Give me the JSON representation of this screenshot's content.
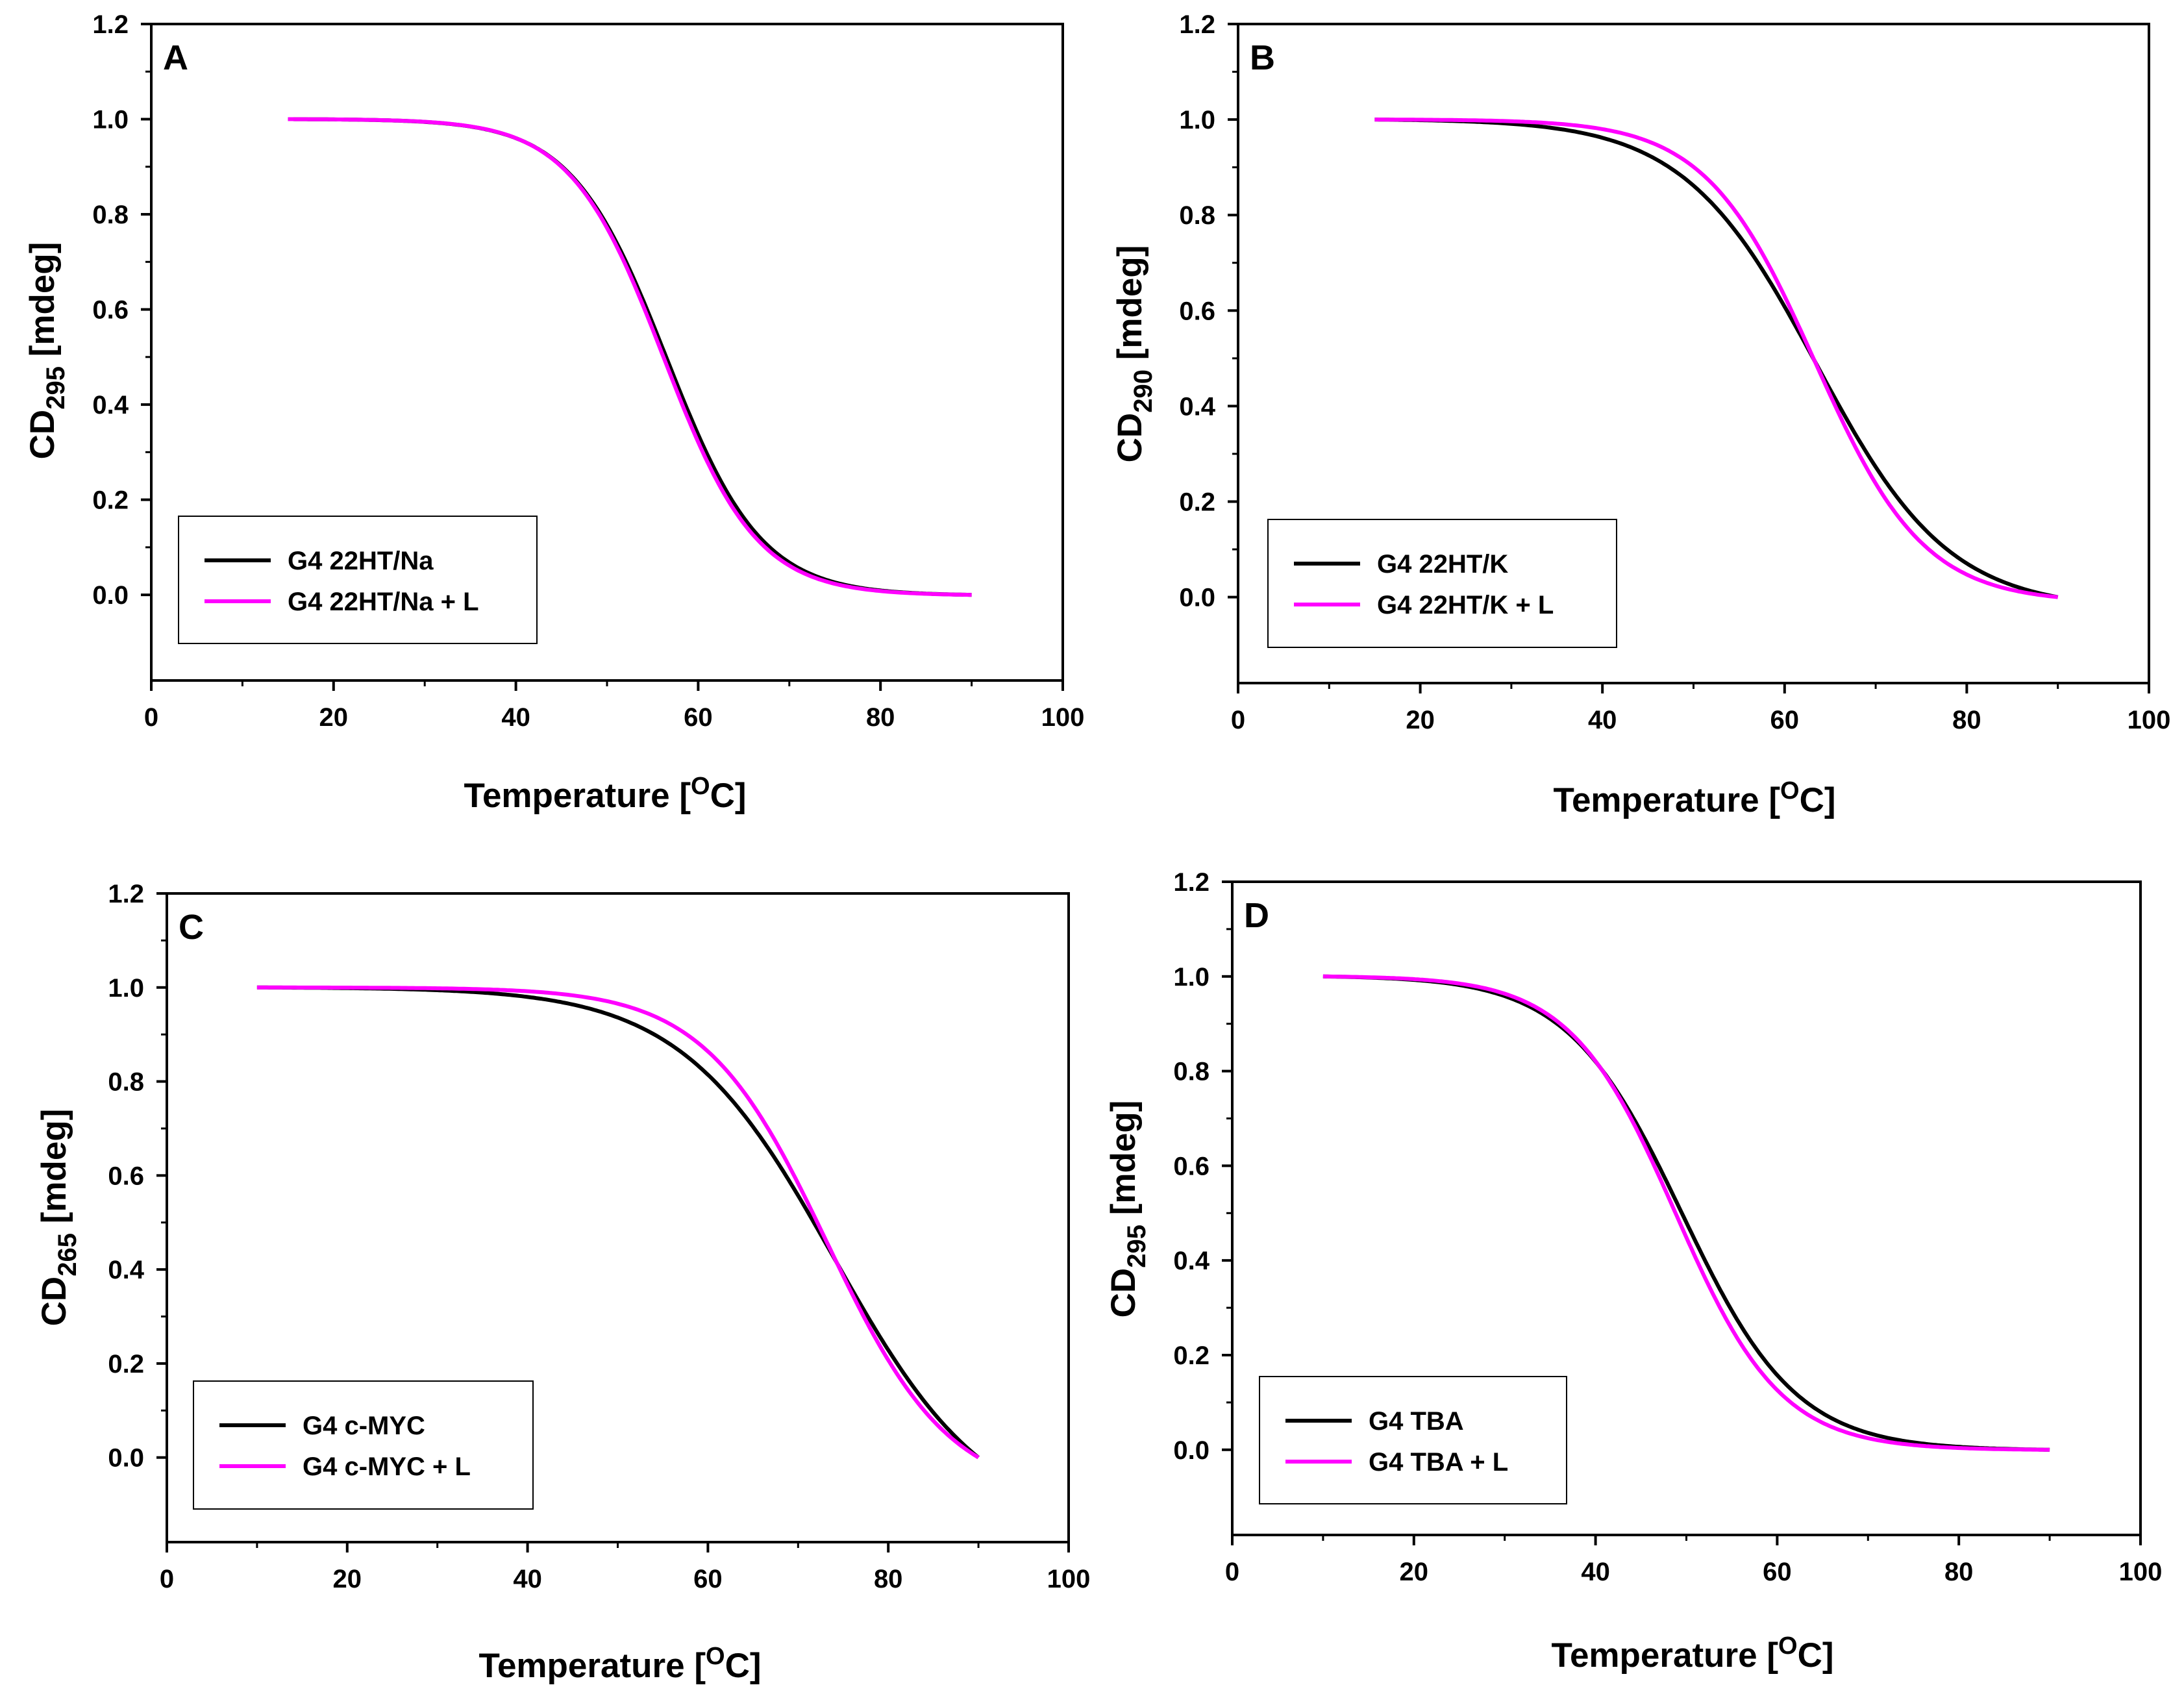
{
  "figure": {
    "description_visible": false
  },
  "chart_data": [
    {
      "type": "line",
      "panel": "A",
      "xlabel_main": "Temperature [",
      "xlabel_sup": "O",
      "xlabel_end": "C]",
      "ylabel_main": "CD",
      "ylabel_sub": "295",
      "ylabel_end": " [mdeg]",
      "xlim": [
        0,
        100
      ],
      "ylim": [
        -0.18,
        1.2
      ],
      "xticks": [
        "0",
        "20",
        "40",
        "60",
        "80",
        "100"
      ],
      "yticks": [
        "0.0",
        "0.2",
        "0.4",
        "0.6",
        "0.8",
        "1.0",
        "1.2"
      ],
      "legend": "bottom-left",
      "series": [
        {
          "name": "G4 22HT/Na",
          "color": "#000000",
          "x_start": 15,
          "x_end": 90,
          "tm": 56.5,
          "width": 5.2
        },
        {
          "name": "G4 22HT/Na + L",
          "color": "#ff00ff",
          "x_start": 15,
          "x_end": 90,
          "tm": 56.2,
          "width": 5.1
        }
      ]
    },
    {
      "type": "line",
      "panel": "B",
      "xlabel_main": "Temperature [",
      "xlabel_sup": "O",
      "xlabel_end": "C]",
      "ylabel_main": "CD",
      "ylabel_sub": "290",
      "ylabel_end": " [mdeg]",
      "xlim": [
        0,
        100
      ],
      "ylim": [
        -0.18,
        1.2
      ],
      "xticks": [
        "0",
        "20",
        "40",
        "60",
        "80",
        "100"
      ],
      "yticks": [
        "0.0",
        "0.2",
        "0.4",
        "0.6",
        "0.8",
        "1.0",
        "1.2"
      ],
      "legend": "bottom-left",
      "series": [
        {
          "name": "G4 22HT/K",
          "color": "#000000",
          "x_start": 15,
          "x_end": 90,
          "tm": 63.5,
          "width": 7.3
        },
        {
          "name": "G4 22HT/K + L",
          "color": "#ff00ff",
          "x_start": 15,
          "x_end": 90,
          "tm": 63.3,
          "width": 6.0
        }
      ]
    },
    {
      "type": "line",
      "panel": "C",
      "xlabel_main": "Temperature [",
      "xlabel_sup": "O",
      "xlabel_end": "C]",
      "ylabel_main": "CD",
      "ylabel_sub": "265",
      "ylabel_end": " [mdeg]",
      "xlim": [
        0,
        100
      ],
      "ylim": [
        -0.18,
        1.2
      ],
      "xticks": [
        "0",
        "20",
        "40",
        "60",
        "80",
        "100"
      ],
      "yticks": [
        "0.0",
        "0.2",
        "0.4",
        "0.6",
        "0.8",
        "1.0",
        "1.2"
      ],
      "legend": "bottom-left",
      "series": [
        {
          "name": "G4 c-MYC",
          "color": "#000000",
          "x_start": 10,
          "x_end": 90,
          "tm": 74.0,
          "width": 8.5
        },
        {
          "name": "G4 c-MYC + L",
          "color": "#ff00ff",
          "x_start": 10,
          "x_end": 90,
          "tm": 73.2,
          "width": 6.8
        }
      ]
    },
    {
      "type": "line",
      "panel": "D",
      "xlabel_main": "Temperature [",
      "xlabel_sup": "O",
      "xlabel_end": "C]",
      "ylabel_main": "CD",
      "ylabel_sub": "295",
      "ylabel_end": " [mdeg]",
      "xlim": [
        0,
        100
      ],
      "ylim": [
        -0.18,
        1.2
      ],
      "xticks": [
        "0",
        "20",
        "40",
        "60",
        "80",
        "100"
      ],
      "yticks": [
        "0.0",
        "0.2",
        "0.4",
        "0.6",
        "0.8",
        "1.0",
        "1.2"
      ],
      "legend": "bottom-left",
      "series": [
        {
          "name": "G4 TBA",
          "color": "#000000",
          "x_start": 10,
          "x_end": 90,
          "tm": 49.5,
          "width": 6.3
        },
        {
          "name": "G4 TBA + L",
          "color": "#ff00ff",
          "x_start": 10,
          "x_end": 90,
          "tm": 48.8,
          "width": 5.8
        }
      ]
    }
  ]
}
